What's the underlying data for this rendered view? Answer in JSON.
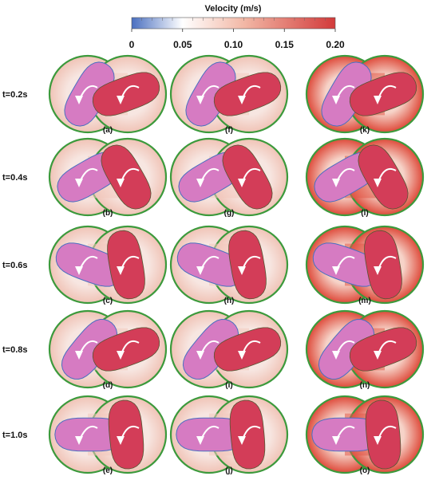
{
  "colorbar": {
    "title": "Velocity  (m/s)",
    "ticks": [
      "0",
      "0.05",
      "0.10",
      "0.15",
      "0.20"
    ],
    "colors": [
      "#4a6fc0",
      "#ffffff",
      "#f2b8a6",
      "#d23a3a"
    ]
  },
  "rows": [
    {
      "time": "t=0.2s",
      "panels": [
        "(a)",
        "(f)",
        "(k)"
      ]
    },
    {
      "time": "t=0.4s",
      "panels": [
        "(b)",
        "(g)",
        "(l)"
      ]
    },
    {
      "time": "t=0.6s",
      "panels": [
        "(c)",
        "(h)",
        "(m)"
      ]
    },
    {
      "time": "t=0.8s",
      "panels": [
        "(d)",
        "(i)",
        "(n)"
      ]
    },
    {
      "time": "t=1.0s",
      "panels": [
        "(e)",
        "(j)",
        "(o)"
      ]
    }
  ],
  "colors": {
    "casing": "#3c9a3c",
    "rotor_left": "#d67bc2",
    "rotor_right": "#d33d58",
    "field_low": "#f6d9d2",
    "field_high": "#dd3b2f"
  }
}
